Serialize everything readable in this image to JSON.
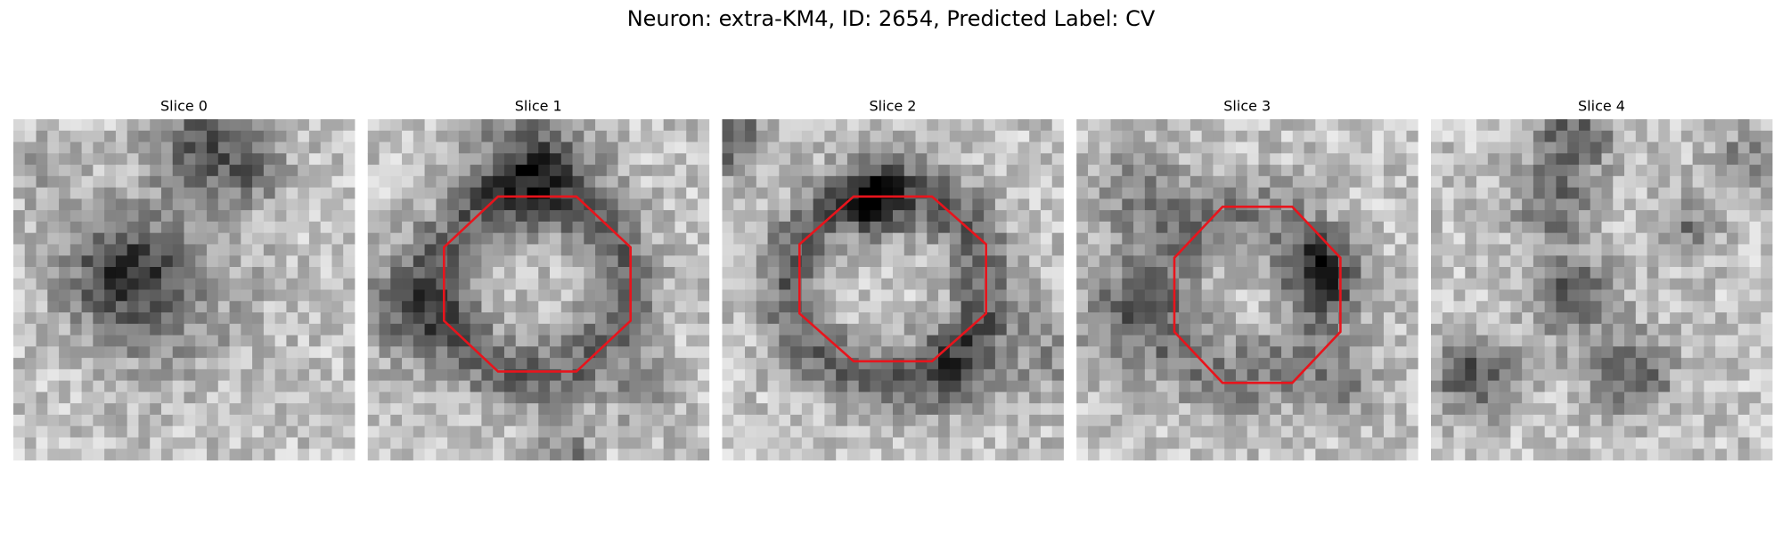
{
  "title": "Neuron: extra-KM4, ID: 2654, Predicted Label: CV",
  "panels": [
    {
      "title": "Slice 0"
    },
    {
      "title": "Slice 1"
    },
    {
      "title": "Slice 2"
    },
    {
      "title": "Slice 3"
    },
    {
      "title": "Slice 4"
    }
  ]
}
